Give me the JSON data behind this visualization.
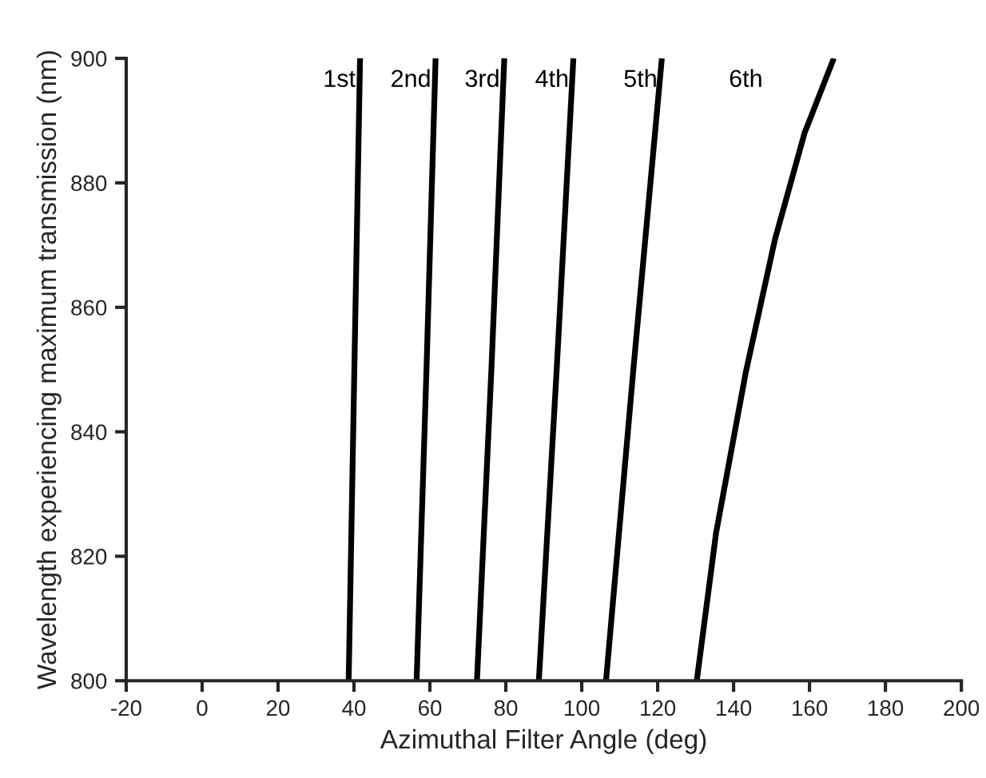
{
  "chart_data": {
    "type": "line",
    "xlabel": "Azimuthal Filter Angle (deg)",
    "ylabel": "Wavelength experiencing maximum transmission (nm)",
    "series": [
      {
        "name": "1st",
        "color": "#000000",
        "x": [
          38.6,
          40.1,
          41.6
        ],
        "values": [
          800,
          850,
          900
        ]
      },
      {
        "name": "2nd",
        "color": "#000000",
        "x": [
          56.5,
          59.1,
          61.5
        ],
        "values": [
          800,
          850,
          900
        ]
      },
      {
        "name": "3rd",
        "color": "#000000",
        "x": [
          72.4,
          76.2,
          79.6
        ],
        "values": [
          800,
          850,
          900
        ]
      },
      {
        "name": "4th",
        "color": "#000000",
        "x": [
          88.7,
          93.4,
          97.8
        ],
        "values": [
          800,
          850,
          900
        ]
      },
      {
        "name": "5th",
        "color": "#000000",
        "x": [
          106.4,
          113.6,
          121.1
        ],
        "values": [
          800,
          850,
          900
        ]
      },
      {
        "name": "6th",
        "color": "#000000",
        "x": [
          130.3,
          135.4,
          143.2,
          150.9,
          158.7,
          166.4
        ],
        "values": [
          800,
          823.8,
          849.5,
          870.9,
          888,
          900
        ]
      }
    ],
    "xlim": [
      -20,
      200
    ],
    "xticks": [
      -20,
      0,
      20,
      40,
      60,
      80,
      100,
      120,
      140,
      160,
      180,
      200
    ],
    "ylim": [
      800,
      900
    ],
    "yticks": [
      800,
      820,
      840,
      860,
      880,
      900
    ],
    "grid": false,
    "legend": false,
    "marker": "none",
    "line_style": "solid"
  }
}
